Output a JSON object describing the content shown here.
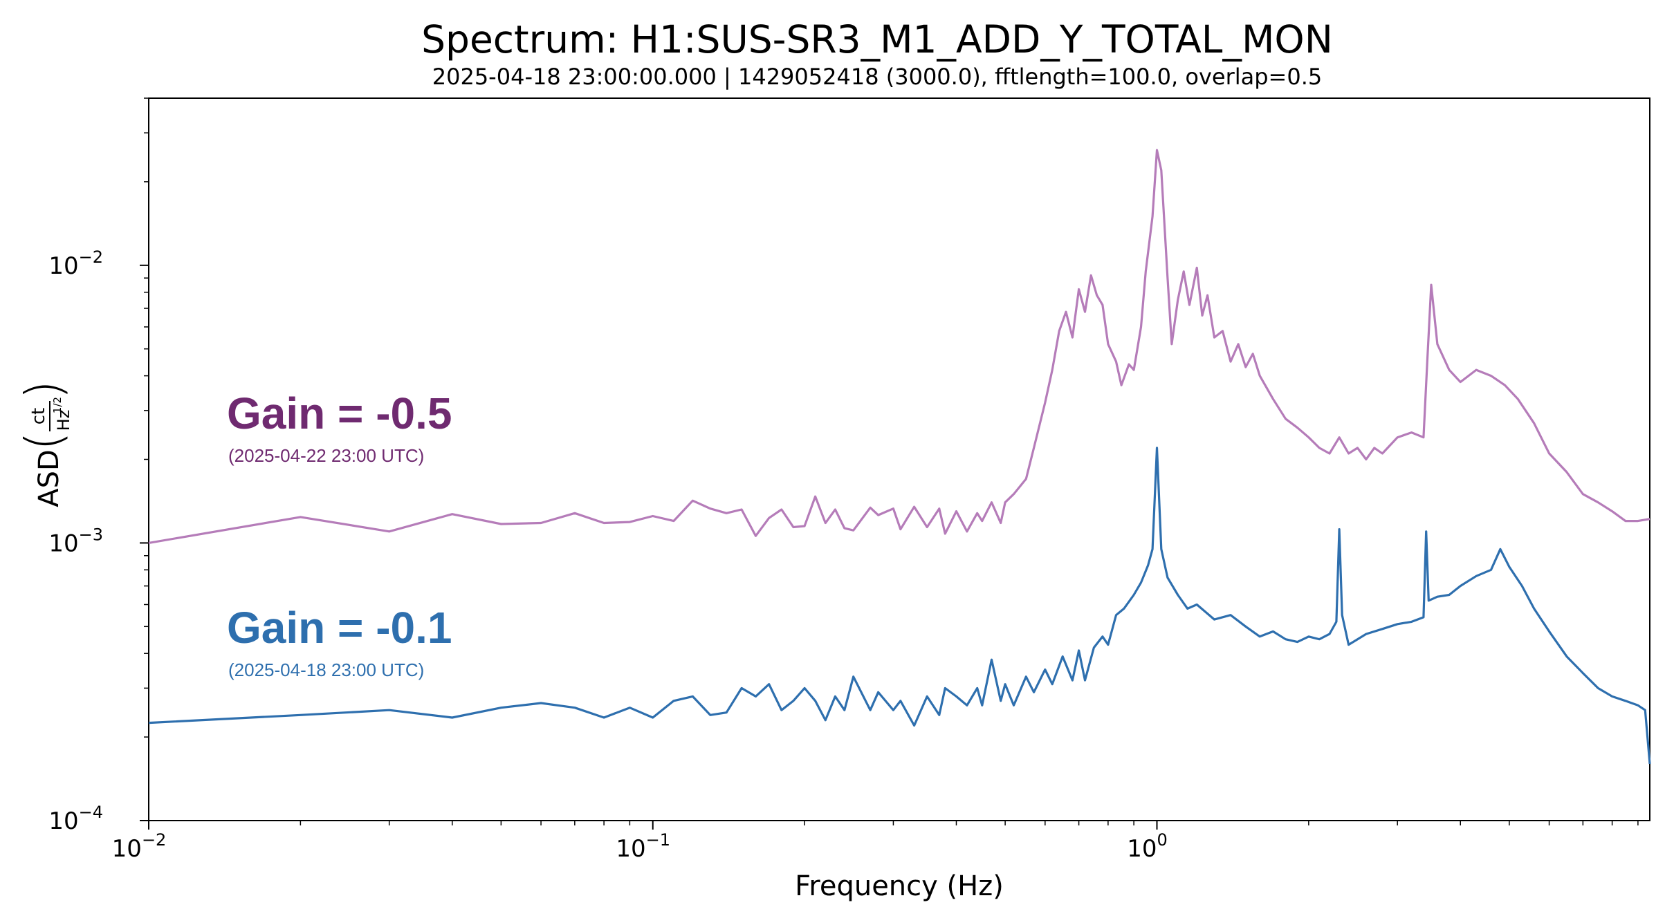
{
  "chart_data": {
    "type": "line",
    "title": "Spectrum: H1:SUS-SR3_M1_ADD_Y_TOTAL_MON",
    "subtitle": "2025-04-18 23:00:00.000 | 1429052418 (3000.0), fftlength=100.0, overlap=0.5",
    "xlabel": "Frequency (Hz)",
    "ylabel": "ASD",
    "ylabel_unit": {
      "num": "ct",
      "den": "Hz",
      "den_exp": "1/2"
    },
    "xscale": "log",
    "yscale": "log",
    "xlim": [
      0.01,
      9.5
    ],
    "ylim": [
      0.0001,
      0.04
    ],
    "x_ticks": [
      {
        "base": "10",
        "exp": "−2",
        "value": 0.01
      },
      {
        "base": "10",
        "exp": "−1",
        "value": 0.1
      },
      {
        "base": "10",
        "exp": "0",
        "value": 1
      }
    ],
    "y_ticks": [
      {
        "base": "10",
        "exp": "−4",
        "value": 0.0001
      },
      {
        "base": "10",
        "exp": "−3",
        "value": 0.001
      },
      {
        "base": "10",
        "exp": "−2",
        "value": 0.01
      }
    ],
    "series": [
      {
        "color": "#b57cb9",
        "annotation": {
          "gain": "Gain =  -0.5",
          "date": "(2025-04-22 23:00 UTC)",
          "color": "#6f2a70"
        },
        "points": [
          [
            0.01,
            0.001
          ],
          [
            0.02,
            0.00124
          ],
          [
            0.03,
            0.0011
          ],
          [
            0.04,
            0.00127
          ],
          [
            0.05,
            0.00117
          ],
          [
            0.06,
            0.00118
          ],
          [
            0.07,
            0.00128
          ],
          [
            0.08,
            0.00118
          ],
          [
            0.09,
            0.00119
          ],
          [
            0.1,
            0.00125
          ],
          [
            0.11,
            0.0012
          ],
          [
            0.12,
            0.00142
          ],
          [
            0.13,
            0.00133
          ],
          [
            0.14,
            0.00128
          ],
          [
            0.15,
            0.00132
          ],
          [
            0.16,
            0.00106
          ],
          [
            0.17,
            0.00123
          ],
          [
            0.18,
            0.00132
          ],
          [
            0.19,
            0.00114
          ],
          [
            0.2,
            0.00115
          ],
          [
            0.21,
            0.00147
          ],
          [
            0.22,
            0.00118
          ],
          [
            0.23,
            0.00132
          ],
          [
            0.24,
            0.00113
          ],
          [
            0.25,
            0.00111
          ],
          [
            0.27,
            0.00134
          ],
          [
            0.28,
            0.00126
          ],
          [
            0.3,
            0.00133
          ],
          [
            0.31,
            0.00112
          ],
          [
            0.33,
            0.00135
          ],
          [
            0.35,
            0.00114
          ],
          [
            0.37,
            0.00133
          ],
          [
            0.38,
            0.00108
          ],
          [
            0.4,
            0.0013
          ],
          [
            0.42,
            0.0011
          ],
          [
            0.44,
            0.00128
          ],
          [
            0.45,
            0.0012
          ],
          [
            0.47,
            0.0014
          ],
          [
            0.49,
            0.00118
          ],
          [
            0.5,
            0.0014
          ],
          [
            0.52,
            0.0015
          ],
          [
            0.55,
            0.0017
          ],
          [
            0.57,
            0.0022
          ],
          [
            0.6,
            0.0032
          ],
          [
            0.62,
            0.0042
          ],
          [
            0.64,
            0.0058
          ],
          [
            0.66,
            0.0068
          ],
          [
            0.68,
            0.0055
          ],
          [
            0.7,
            0.0082
          ],
          [
            0.72,
            0.0068
          ],
          [
            0.74,
            0.0092
          ],
          [
            0.76,
            0.0078
          ],
          [
            0.78,
            0.0072
          ],
          [
            0.8,
            0.0052
          ],
          [
            0.83,
            0.0045
          ],
          [
            0.85,
            0.0037
          ],
          [
            0.88,
            0.0044
          ],
          [
            0.9,
            0.0042
          ],
          [
            0.93,
            0.006
          ],
          [
            0.95,
            0.0095
          ],
          [
            0.98,
            0.015
          ],
          [
            1.0,
            0.026
          ],
          [
            1.02,
            0.022
          ],
          [
            1.05,
            0.009
          ],
          [
            1.07,
            0.0052
          ],
          [
            1.1,
            0.0075
          ],
          [
            1.13,
            0.0095
          ],
          [
            1.16,
            0.0072
          ],
          [
            1.2,
            0.0098
          ],
          [
            1.23,
            0.0066
          ],
          [
            1.26,
            0.0078
          ],
          [
            1.3,
            0.0055
          ],
          [
            1.35,
            0.0058
          ],
          [
            1.4,
            0.0045
          ],
          [
            1.45,
            0.0052
          ],
          [
            1.5,
            0.0043
          ],
          [
            1.55,
            0.0048
          ],
          [
            1.6,
            0.004
          ],
          [
            1.7,
            0.0033
          ],
          [
            1.8,
            0.0028
          ],
          [
            1.9,
            0.0026
          ],
          [
            2.0,
            0.0024
          ],
          [
            2.1,
            0.0022
          ],
          [
            2.2,
            0.0021
          ],
          [
            2.3,
            0.0024
          ],
          [
            2.4,
            0.0021
          ],
          [
            2.5,
            0.0022
          ],
          [
            2.6,
            0.002
          ],
          [
            2.7,
            0.0022
          ],
          [
            2.8,
            0.0021
          ],
          [
            3.0,
            0.0024
          ],
          [
            3.2,
            0.0025
          ],
          [
            3.38,
            0.0024
          ],
          [
            3.44,
            0.0046
          ],
          [
            3.5,
            0.0085
          ],
          [
            3.6,
            0.0052
          ],
          [
            3.8,
            0.0042
          ],
          [
            4.0,
            0.0038
          ],
          [
            4.3,
            0.0042
          ],
          [
            4.6,
            0.004
          ],
          [
            4.9,
            0.0037
          ],
          [
            5.2,
            0.0033
          ],
          [
            5.6,
            0.0027
          ],
          [
            6.0,
            0.0021
          ],
          [
            6.5,
            0.0018
          ],
          [
            7.0,
            0.0015
          ],
          [
            7.5,
            0.0014
          ],
          [
            8.0,
            0.0013
          ],
          [
            8.5,
            0.0012
          ],
          [
            9.0,
            0.0012
          ],
          [
            9.5,
            0.00122
          ]
        ]
      },
      {
        "color": "#2e6fae",
        "annotation": {
          "gain": "Gain =  -0.1",
          "date": "(2025-04-18 23:00 UTC)",
          "color": "#2e6fae"
        },
        "points": [
          [
            0.01,
            0.000225
          ],
          [
            0.02,
            0.00024
          ],
          [
            0.03,
            0.00025
          ],
          [
            0.04,
            0.000235
          ],
          [
            0.05,
            0.000255
          ],
          [
            0.06,
            0.000265
          ],
          [
            0.07,
            0.000255
          ],
          [
            0.08,
            0.000235
          ],
          [
            0.09,
            0.000255
          ],
          [
            0.1,
            0.000235
          ],
          [
            0.11,
            0.00027
          ],
          [
            0.12,
            0.00028
          ],
          [
            0.13,
            0.00024
          ],
          [
            0.14,
            0.000245
          ],
          [
            0.15,
            0.0003
          ],
          [
            0.16,
            0.00028
          ],
          [
            0.17,
            0.00031
          ],
          [
            0.18,
            0.00025
          ],
          [
            0.19,
            0.00027
          ],
          [
            0.2,
            0.0003
          ],
          [
            0.21,
            0.00027
          ],
          [
            0.22,
            0.00023
          ],
          [
            0.23,
            0.00028
          ],
          [
            0.24,
            0.00025
          ],
          [
            0.25,
            0.00033
          ],
          [
            0.27,
            0.00025
          ],
          [
            0.28,
            0.00029
          ],
          [
            0.3,
            0.00025
          ],
          [
            0.31,
            0.00027
          ],
          [
            0.33,
            0.00022
          ],
          [
            0.35,
            0.00028
          ],
          [
            0.37,
            0.00024
          ],
          [
            0.38,
            0.0003
          ],
          [
            0.4,
            0.00028
          ],
          [
            0.42,
            0.00026
          ],
          [
            0.44,
            0.0003
          ],
          [
            0.45,
            0.00026
          ],
          [
            0.47,
            0.00038
          ],
          [
            0.49,
            0.00027
          ],
          [
            0.5,
            0.00031
          ],
          [
            0.52,
            0.00026
          ],
          [
            0.55,
            0.00033
          ],
          [
            0.57,
            0.00029
          ],
          [
            0.6,
            0.00035
          ],
          [
            0.62,
            0.00031
          ],
          [
            0.65,
            0.00039
          ],
          [
            0.68,
            0.00032
          ],
          [
            0.7,
            0.00041
          ],
          [
            0.72,
            0.00032
          ],
          [
            0.75,
            0.00042
          ],
          [
            0.78,
            0.00046
          ],
          [
            0.8,
            0.00043
          ],
          [
            0.83,
            0.00055
          ],
          [
            0.86,
            0.00058
          ],
          [
            0.9,
            0.00065
          ],
          [
            0.93,
            0.00072
          ],
          [
            0.96,
            0.00083
          ],
          [
            0.98,
            0.00095
          ],
          [
            1.0,
            0.0022
          ],
          [
            1.02,
            0.00095
          ],
          [
            1.05,
            0.00075
          ],
          [
            1.1,
            0.00065
          ],
          [
            1.15,
            0.00058
          ],
          [
            1.2,
            0.0006
          ],
          [
            1.3,
            0.00053
          ],
          [
            1.4,
            0.00055
          ],
          [
            1.5,
            0.0005
          ],
          [
            1.6,
            0.00046
          ],
          [
            1.7,
            0.00048
          ],
          [
            1.8,
            0.00045
          ],
          [
            1.9,
            0.00044
          ],
          [
            2.0,
            0.00046
          ],
          [
            2.1,
            0.00045
          ],
          [
            2.2,
            0.00047
          ],
          [
            2.27,
            0.00052
          ],
          [
            2.3,
            0.00112
          ],
          [
            2.33,
            0.00055
          ],
          [
            2.4,
            0.00043
          ],
          [
            2.5,
            0.00045
          ],
          [
            2.6,
            0.00047
          ],
          [
            2.8,
            0.00049
          ],
          [
            3.0,
            0.00051
          ],
          [
            3.2,
            0.00052
          ],
          [
            3.38,
            0.00054
          ],
          [
            3.42,
            0.0011
          ],
          [
            3.46,
            0.00062
          ],
          [
            3.6,
            0.00064
          ],
          [
            3.8,
            0.00065
          ],
          [
            4.0,
            0.0007
          ],
          [
            4.3,
            0.00076
          ],
          [
            4.6,
            0.0008
          ],
          [
            4.8,
            0.00095
          ],
          [
            5.0,
            0.00082
          ],
          [
            5.3,
            0.0007
          ],
          [
            5.6,
            0.00058
          ],
          [
            6.0,
            0.00048
          ],
          [
            6.5,
            0.00039
          ],
          [
            7.0,
            0.00034
          ],
          [
            7.5,
            0.0003
          ],
          [
            8.0,
            0.00028
          ],
          [
            8.5,
            0.00027
          ],
          [
            9.0,
            0.00026
          ],
          [
            9.3,
            0.00025
          ],
          [
            9.5,
            0.00016
          ]
        ]
      }
    ]
  }
}
